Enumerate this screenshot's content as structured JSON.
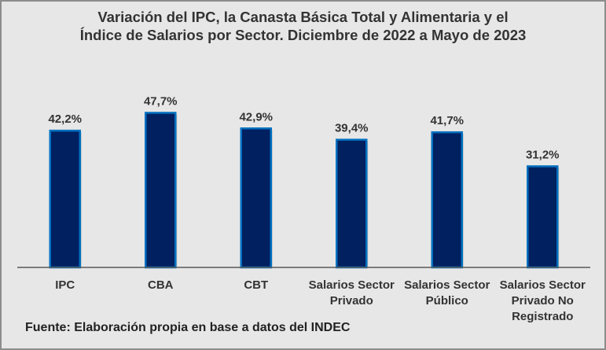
{
  "chart_data": {
    "type": "bar",
    "title_lines": [
      "Variación del IPC, la Canasta Básica Total y Alimentaria y el",
      "Índice de Salarios por Sector. Diciembre de 2022 a Mayo de 2023"
    ],
    "categories": [
      [
        "IPC"
      ],
      [
        "CBA"
      ],
      [
        "CBT"
      ],
      [
        "Salarios Sector",
        "Privado"
      ],
      [
        "Salarios Sector",
        "Público"
      ],
      [
        "Salarios Sector",
        "Privado No",
        "Registrado"
      ]
    ],
    "values": [
      42.2,
      47.7,
      42.9,
      39.4,
      41.7,
      31.2
    ],
    "data_labels": [
      "42,2%",
      "47,7%",
      "42,9%",
      "39,4%",
      "41,7%",
      "31,2%"
    ],
    "ylim": [
      0,
      50
    ],
    "xlabel": "",
    "ylabel": "",
    "grid": false,
    "colors": {
      "bar_fill": "#002060",
      "bar_border": "#0070c0",
      "background": "#e7e7e7"
    }
  },
  "source": "Fuente: Elaboración propia en base a datos del INDEC"
}
